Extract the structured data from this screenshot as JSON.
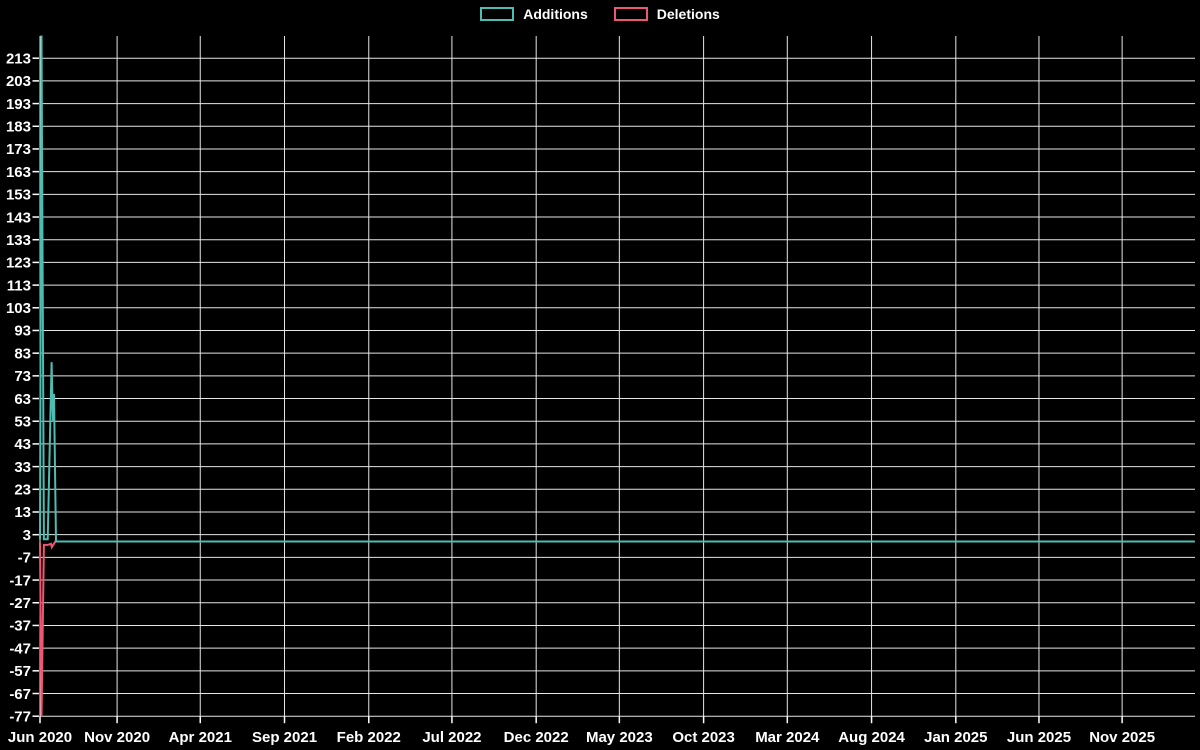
{
  "legend": {
    "items": [
      {
        "label": "Additions",
        "color": "#4dbcb2"
      },
      {
        "label": "Deletions",
        "color": "#ec5772"
      }
    ]
  },
  "chart_data": {
    "type": "line",
    "title": "",
    "xlabel": "",
    "ylabel": "",
    "legend_position": "top",
    "grid": true,
    "background_color": "#000000",
    "grid_color": "#e6e6e6",
    "text_color": "#ffffff",
    "ylim": [
      -77,
      223
    ],
    "yticks": [
      213,
      203,
      193,
      183,
      173,
      163,
      153,
      143,
      133,
      123,
      113,
      103,
      93,
      83,
      73,
      63,
      53,
      43,
      33,
      23,
      13,
      3,
      -7,
      -17,
      -27,
      -37,
      -47,
      -57,
      -67,
      -77
    ],
    "x_tick_labels": [
      "Jun 2020",
      "Nov 2020",
      "Apr 2021",
      "Sep 2021",
      "Feb 2022",
      "Jul 2022",
      "Dec 2022",
      "May 2023",
      "Oct 2023",
      "Mar 2024",
      "Aug 2024",
      "Jan 2025",
      "Jun 2025",
      "Nov 2025"
    ],
    "x_tick_day_offsets": [
      0,
      140,
      291,
      444,
      597,
      748,
      901,
      1052,
      1205,
      1357,
      1510,
      1663,
      1814,
      1965
    ],
    "x_unit": "days-from-start (Jun 2020)",
    "series": [
      {
        "name": "Deletions",
        "color": "#ec5772",
        "points": [
          [
            0,
            -0.5
          ],
          [
            2.7,
            -77
          ],
          [
            7,
            -1.5
          ],
          [
            14,
            -1.5
          ],
          [
            20,
            -1
          ],
          [
            21.5,
            -2.5
          ],
          [
            24,
            -1.5
          ],
          [
            28,
            0
          ],
          [
            2097,
            0
          ]
        ]
      },
      {
        "name": "Additions",
        "color": "#4dbcb2",
        "points": [
          [
            0,
            1
          ],
          [
            2.7,
            223
          ],
          [
            7,
            1
          ],
          [
            14,
            1
          ],
          [
            21,
            79
          ],
          [
            23.5,
            53
          ],
          [
            25.5,
            65
          ],
          [
            29,
            0
          ],
          [
            2097,
            0
          ]
        ]
      }
    ]
  }
}
